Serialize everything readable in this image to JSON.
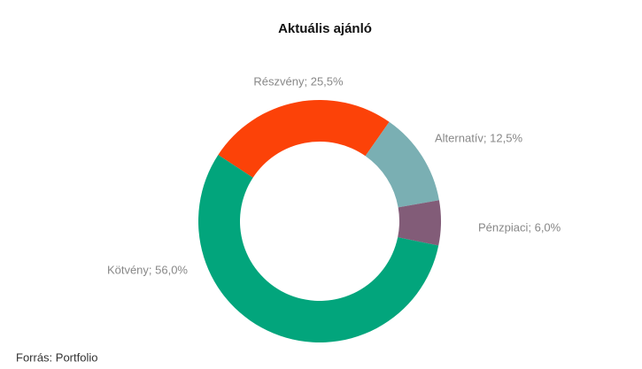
{
  "chart_data": {
    "type": "donut",
    "title": "Aktuális ajánló",
    "values": [
      25.5,
      12.5,
      6.0,
      56.0
    ],
    "value_labels": [
      "Részvény; 25,5%",
      "Alternatív; 12,5%",
      "Pénzpiaci; 6,0%",
      "Kötvény; 56,0%"
    ],
    "colors": [
      "#fc4208",
      "#7aafb3",
      "#825c78",
      "#02a57c"
    ],
    "source": "Forrás: Portfolio"
  }
}
